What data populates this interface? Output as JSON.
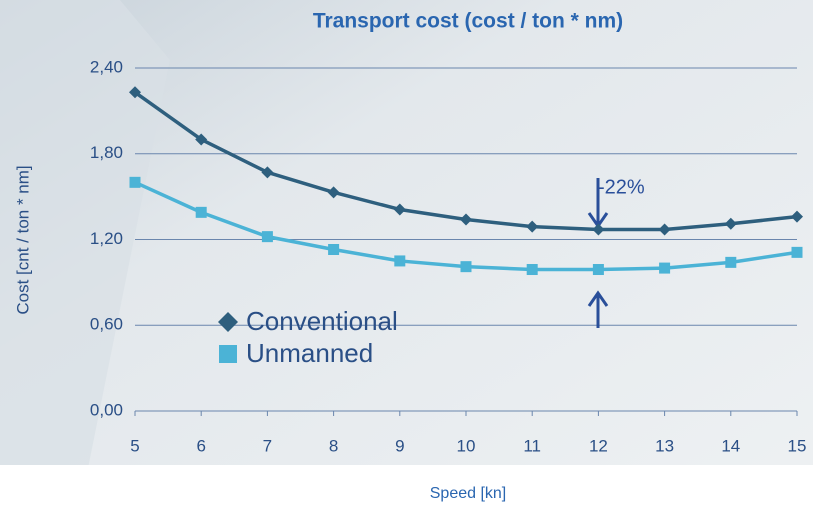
{
  "chart_data": {
    "type": "line",
    "title": "Transport cost (cost / ton * nm)",
    "x_label": "Speed [kn]",
    "y_label": "Cost [cnt / ton * nm]",
    "x": [
      5,
      6,
      7,
      8,
      9,
      10,
      11,
      12,
      13,
      14,
      15
    ],
    "series": [
      {
        "name": "Conventional",
        "color": "#2e5f7e",
        "marker": "diamond",
        "values": [
          2.23,
          1.9,
          1.67,
          1.53,
          1.41,
          1.34,
          1.29,
          1.27,
          1.27,
          1.31,
          1.36
        ]
      },
      {
        "name": "Unmanned",
        "color": "#4bb3d6",
        "marker": "square",
        "values": [
          1.6,
          1.39,
          1.22,
          1.13,
          1.05,
          1.01,
          0.99,
          0.99,
          1.0,
          1.04,
          1.11
        ]
      }
    ],
    "xlim": [
      5,
      15
    ],
    "xticks": [
      5,
      6,
      7,
      8,
      9,
      10,
      11,
      12,
      13,
      14,
      15
    ],
    "ylim": [
      0,
      2.4
    ],
    "yticks": [
      {
        "value": 0,
        "label": "0,00"
      },
      {
        "value": 0.6,
        "label": "0,60"
      },
      {
        "value": 1.2,
        "label": "1,20"
      },
      {
        "value": 1.8,
        "label": "1,80"
      },
      {
        "value": 2.4,
        "label": "2,40"
      }
    ],
    "grid": true,
    "legend_position": "left",
    "annotation": "-22%"
  }
}
